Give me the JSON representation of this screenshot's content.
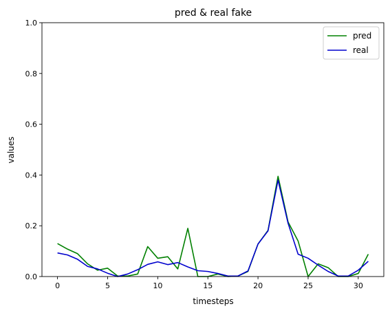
{
  "chart_data": {
    "type": "line",
    "title": "pred & real fake",
    "xlabel": "timesteps",
    "ylabel": "values",
    "xlim": [
      -1.55,
      32.55
    ],
    "ylim": [
      0,
      1.0
    ],
    "xticks": [
      0,
      5,
      10,
      15,
      20,
      25,
      30
    ],
    "xtick_labels": [
      "0",
      "5",
      "10",
      "15",
      "20",
      "25",
      "30"
    ],
    "yticks": [
      0,
      0.2,
      0.4,
      0.6,
      0.8,
      1.0
    ],
    "ytick_labels": [
      "0.0",
      "0.2",
      "0.4",
      "0.6",
      "0.8",
      "1.0"
    ],
    "grid": false,
    "legend_position": "top-right",
    "x": [
      0,
      1,
      2,
      3,
      4,
      5,
      6,
      7,
      8,
      9,
      10,
      11,
      12,
      13,
      14,
      15,
      16,
      17,
      18,
      19,
      20,
      21,
      22,
      23,
      24,
      25,
      26,
      27,
      28,
      29,
      30,
      31
    ],
    "series": [
      {
        "name": "pred",
        "color": "#008000",
        "values": [
          0.13,
          0.108,
          0.09,
          0.05,
          0.025,
          0.033,
          0.002,
          0.002,
          0.01,
          0.118,
          0.072,
          0.078,
          0.03,
          0.19,
          0.0,
          0.0,
          0.01,
          0.0,
          0.002,
          0.02,
          0.128,
          0.182,
          0.395,
          0.215,
          0.14,
          0.0,
          0.05,
          0.035,
          0.0,
          0.0,
          0.012,
          0.088
        ]
      },
      {
        "name": "real",
        "color": "#0000cd",
        "values": [
          0.093,
          0.085,
          0.068,
          0.04,
          0.03,
          0.013,
          0.0,
          0.01,
          0.027,
          0.048,
          0.058,
          0.047,
          0.055,
          0.038,
          0.023,
          0.02,
          0.012,
          0.002,
          0.002,
          0.022,
          0.128,
          0.18,
          0.38,
          0.21,
          0.088,
          0.072,
          0.045,
          0.02,
          0.002,
          0.002,
          0.025,
          0.06
        ]
      }
    ]
  }
}
